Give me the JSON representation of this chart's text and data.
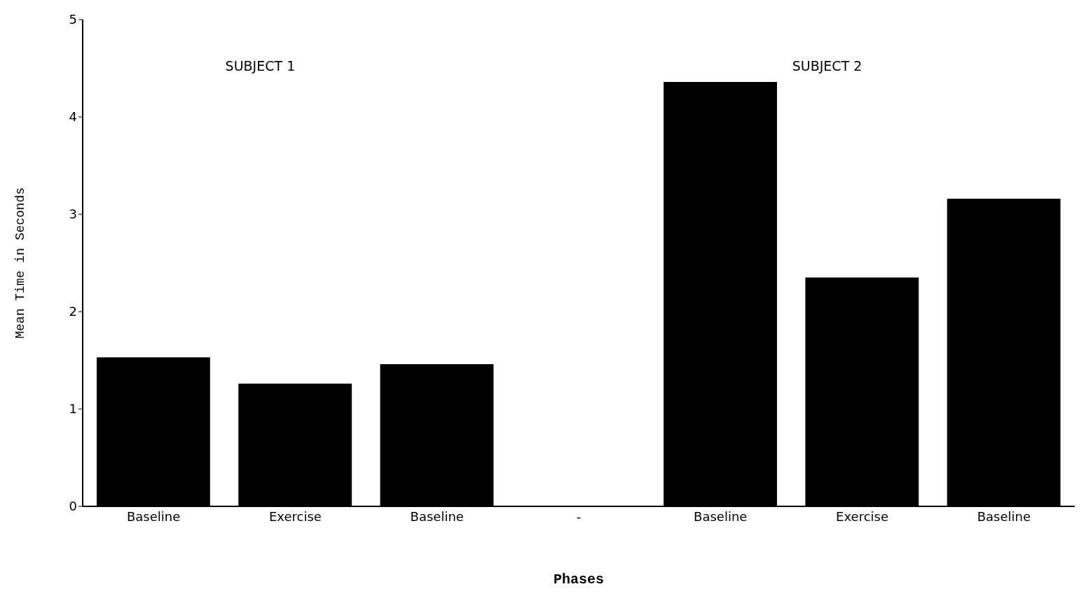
{
  "chart_data": {
    "type": "bar",
    "xlabel": "Phases",
    "ylabel": "Mean Time in Seconds",
    "categories": [
      "Baseline",
      "Exercise",
      "Baseline",
      "-",
      "Baseline",
      "Exercise",
      "Baseline"
    ],
    "values": [
      1.53,
      1.26,
      1.46,
      null,
      4.36,
      2.35,
      3.16
    ],
    "color": "#000000",
    "ylim": [
      0,
      5
    ],
    "yticks": [
      0,
      1,
      2,
      3,
      4,
      5
    ],
    "annotations": [
      "SUBJECT 1",
      "SUBJECT 2"
    ]
  }
}
